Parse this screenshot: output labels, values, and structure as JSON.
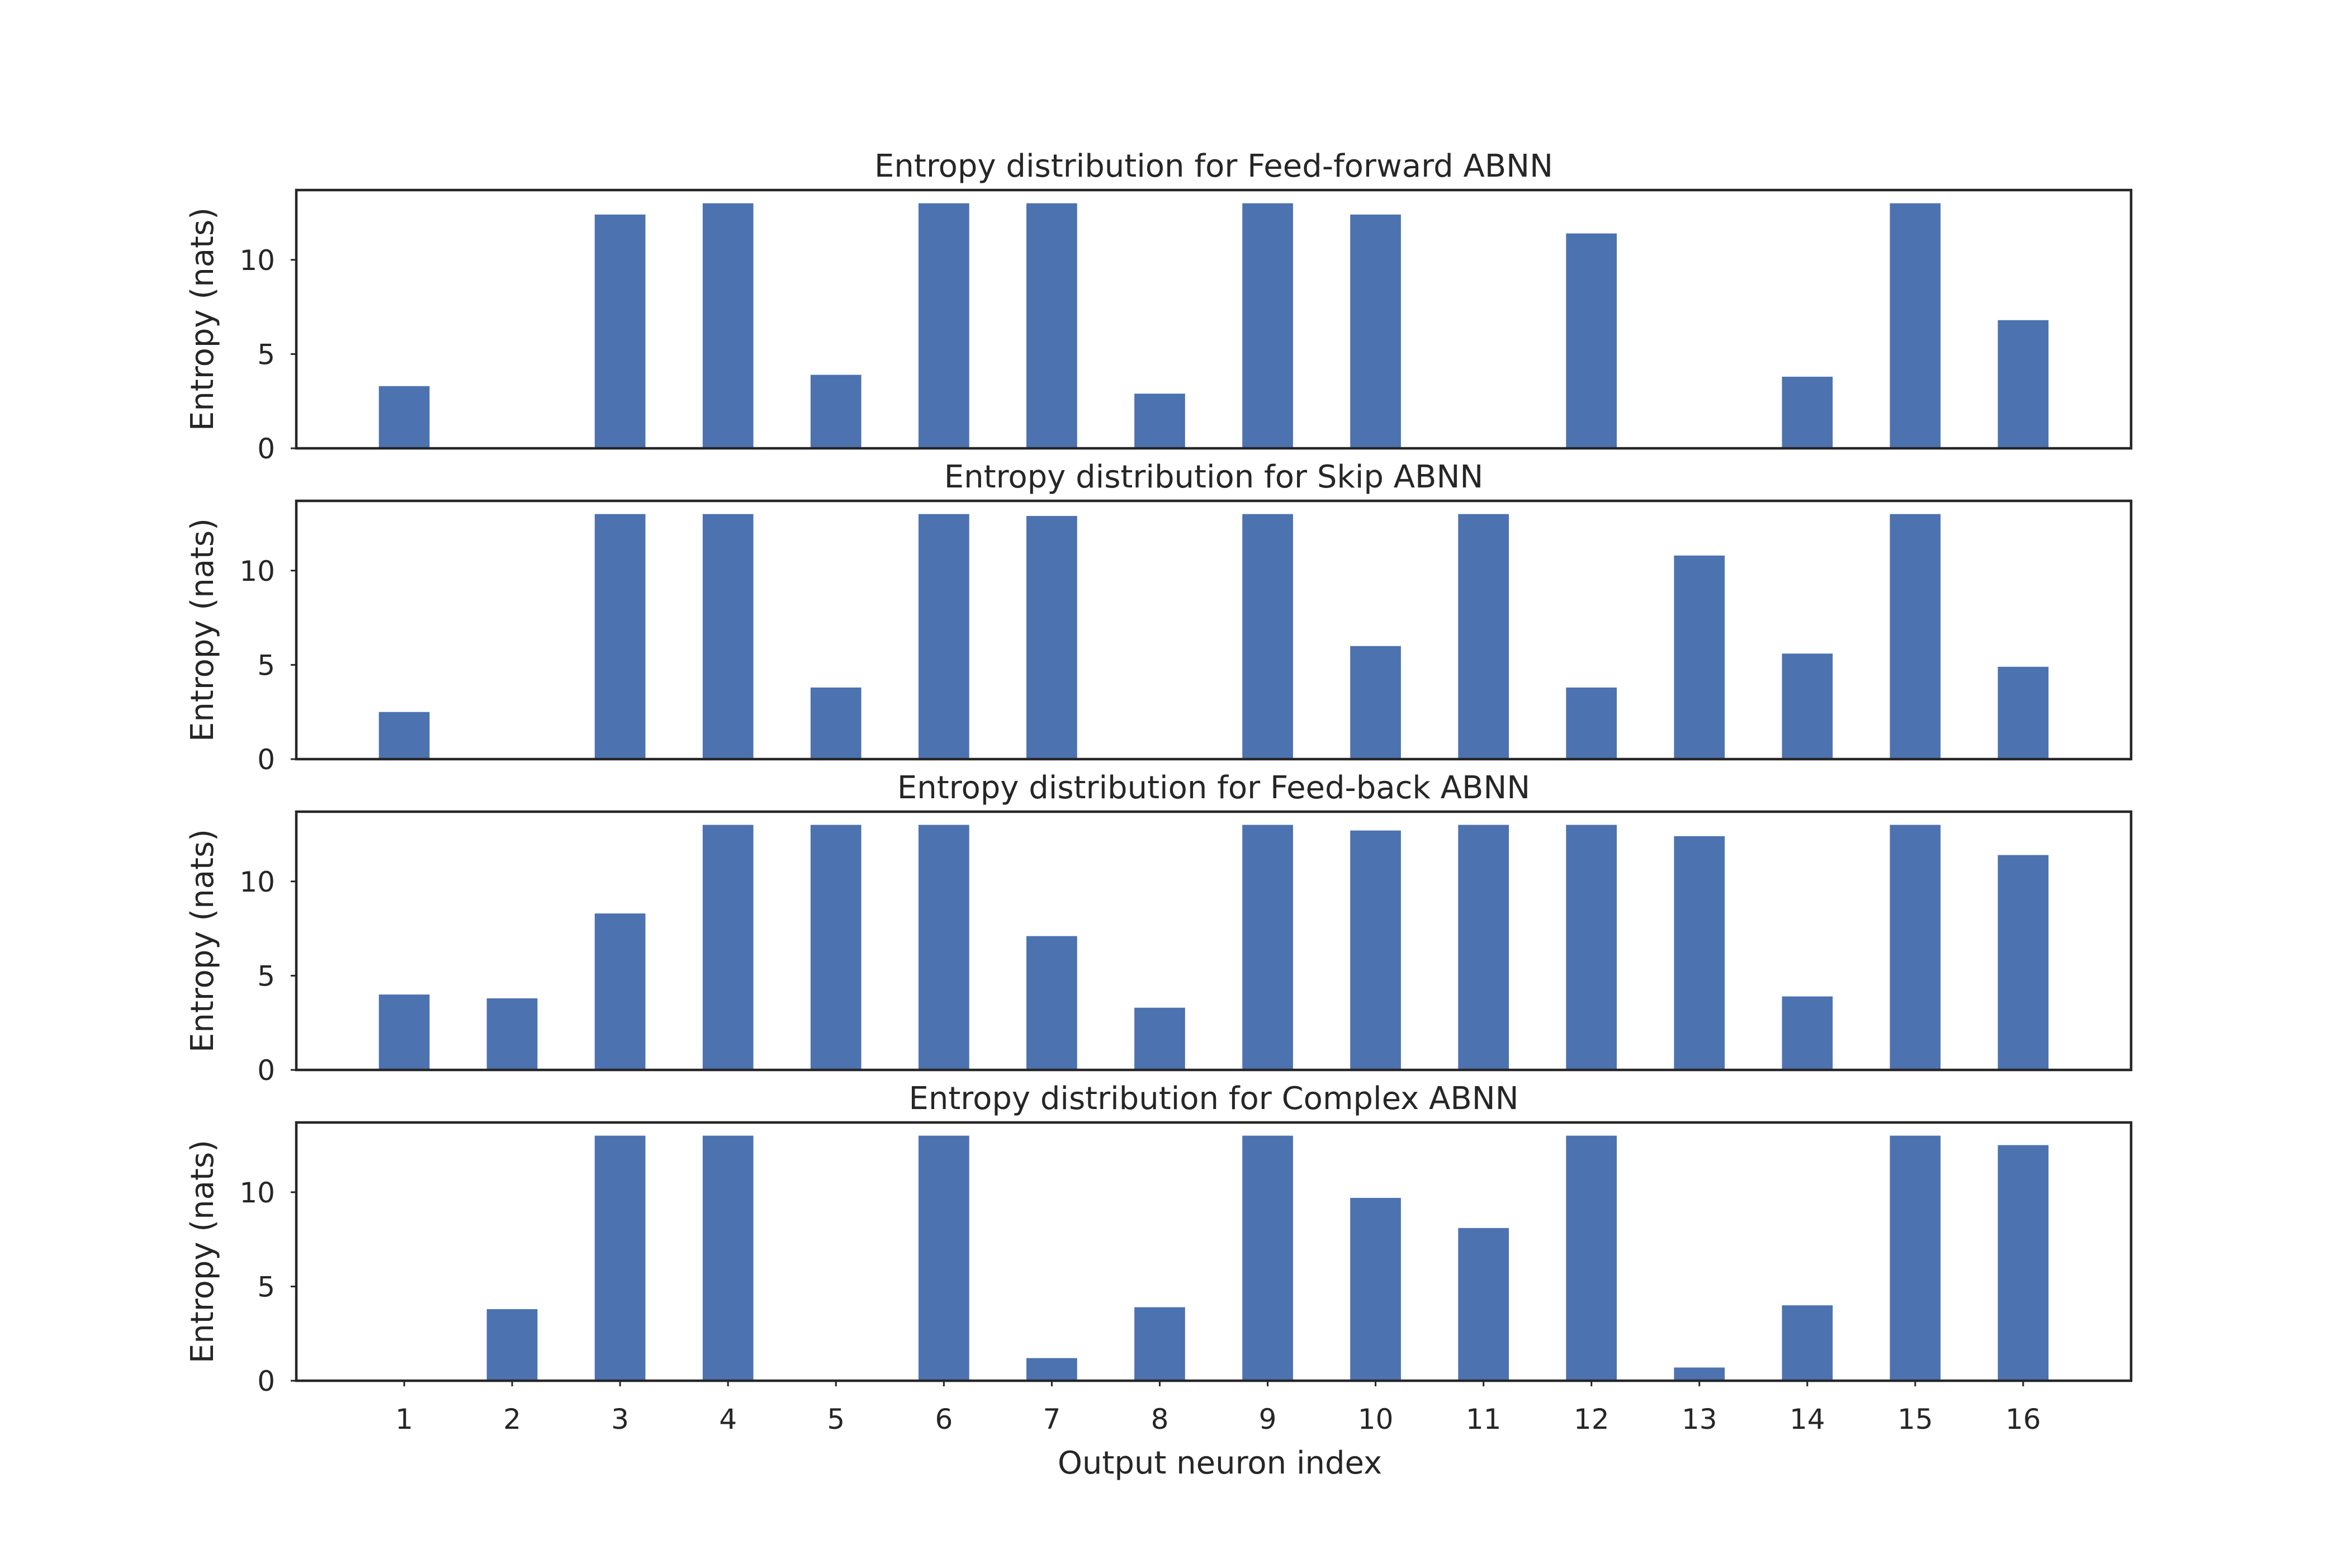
{
  "chart_data": {
    "type": "bar",
    "xlabel": "Output neuron index",
    "categories": [
      "1",
      "2",
      "3",
      "4",
      "5",
      "6",
      "7",
      "8",
      "9",
      "10",
      "11",
      "12",
      "13",
      "14",
      "15",
      "16"
    ],
    "bar_color": "#4c72b0",
    "grid": false,
    "panels": [
      {
        "title": "Entropy distribution for Feed-forward ABNN",
        "ylabel": "Entropy (nats)",
        "yticks": [
          "0",
          "5",
          "10"
        ],
        "ylim": [
          0,
          13.7
        ],
        "values": [
          3.3,
          0.0,
          12.4,
          13.0,
          3.9,
          13.0,
          13.0,
          2.9,
          13.0,
          12.4,
          0.0,
          11.4,
          0.0,
          3.8,
          13.0,
          6.8
        ]
      },
      {
        "title": "Entropy distribution for Skip ABNN",
        "ylabel": "Entropy (nats)",
        "yticks": [
          "0",
          "5",
          "10"
        ],
        "ylim": [
          0,
          13.7
        ],
        "values": [
          2.5,
          0.0,
          13.0,
          13.0,
          3.8,
          13.0,
          12.9,
          0.0,
          13.0,
          6.0,
          13.0,
          3.8,
          10.8,
          5.6,
          13.0,
          4.9
        ]
      },
      {
        "title": "Entropy distribution for Feed-back ABNN",
        "ylabel": "Entropy (nats)",
        "yticks": [
          "0",
          "5",
          "10"
        ],
        "ylim": [
          0,
          13.7
        ],
        "values": [
          4.0,
          3.8,
          8.3,
          13.0,
          13.0,
          13.0,
          7.1,
          3.3,
          13.0,
          12.7,
          13.0,
          13.0,
          12.4,
          3.9,
          13.0,
          11.4
        ]
      },
      {
        "title": "Entropy distribution for Complex ABNN",
        "ylabel": "Entropy (nats)",
        "yticks": [
          "0",
          "5",
          "10"
        ],
        "ylim": [
          0,
          13.7
        ],
        "values": [
          0.0,
          3.8,
          13.0,
          13.0,
          0.0,
          13.0,
          1.2,
          3.9,
          13.0,
          9.7,
          8.1,
          13.0,
          0.7,
          4.0,
          13.0,
          12.5
        ]
      }
    ]
  }
}
